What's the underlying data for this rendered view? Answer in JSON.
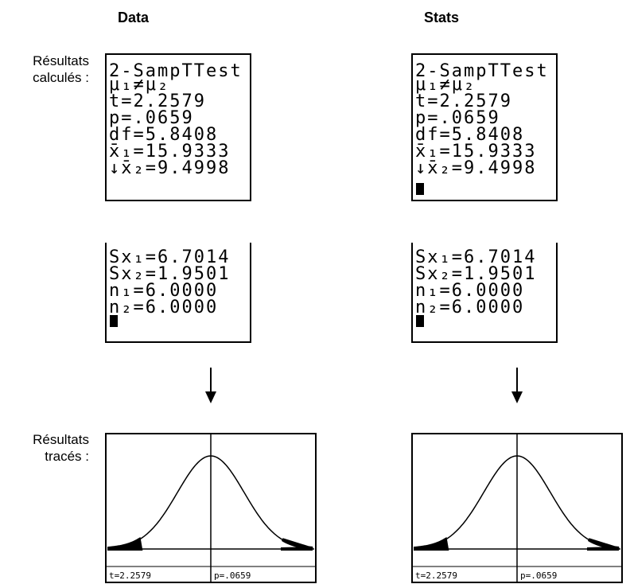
{
  "columns": [
    {
      "header": "Data",
      "screen1": {
        "lines": [
          "2-SampTTest",
          "μ₁≠μ₂",
          "t=2.2579",
          "p=.0659",
          "df=5.8408",
          "x̄₁=15.9333",
          "↓x̄₂=9.4998"
        ],
        "cursor": false
      },
      "screen2": {
        "lines": [
          "Sx₁=6.7014",
          "Sx₂=1.9501",
          "n₁=6.0000",
          "n₂=6.0000"
        ],
        "cursor": true
      },
      "graph": {
        "t_label": "t=2.2579",
        "p_label": "p=.0659"
      }
    },
    {
      "header": "Stats",
      "screen1": {
        "lines": [
          "2-SampTTest",
          "μ₁≠μ₂",
          "t=2.2579",
          "p=.0659",
          "df=5.8408",
          "x̄₁=15.9333",
          "↓x̄₂=9.4998"
        ],
        "cursor": true
      },
      "screen2": {
        "lines": [
          "Sx₁=6.7014",
          "Sx₂=1.9501",
          "n₁=6.0000",
          "n₂=6.0000"
        ],
        "cursor": true
      },
      "graph": {
        "t_label": "t=2.2579",
        "p_label": "p=.0659"
      }
    }
  ],
  "row_labels": [
    {
      "lines": [
        "Résultats",
        "calculés :"
      ]
    },
    {
      "lines": [
        "Résultats",
        "tracés :"
      ]
    }
  ]
}
